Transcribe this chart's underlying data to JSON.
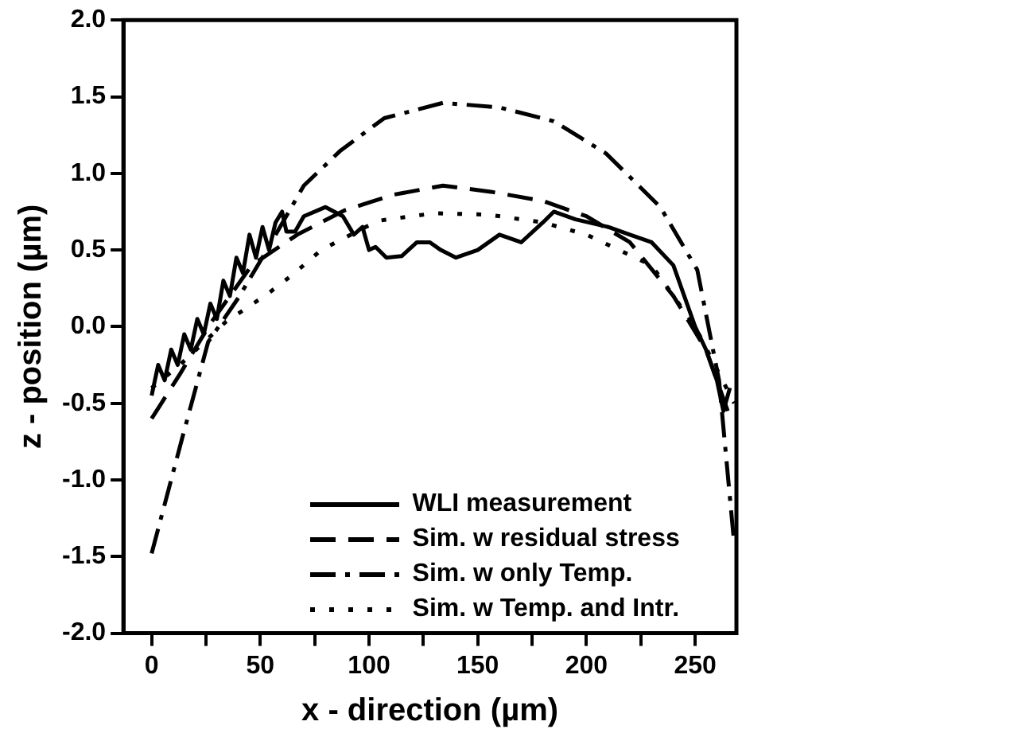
{
  "chart_data": {
    "type": "line",
    "xlabel": "x - direction (µm)",
    "ylabel": "z - position (µm)",
    "xlim": [
      -13,
      269
    ],
    "ylim": [
      -2,
      2
    ],
    "xticks": [
      0,
      {
        "value": 25,
        "label": null
      },
      50,
      {
        "value": 75,
        "label": null
      },
      100,
      {
        "value": 125,
        "label": null
      },
      150,
      {
        "value": 175,
        "label": null
      },
      200,
      {
        "value": 225,
        "label": null
      },
      250
    ],
    "yticks": [
      {
        "value": -2,
        "label": "-2.0"
      },
      {
        "value": -1.5,
        "label": "-1.5"
      },
      {
        "value": -1,
        "label": "-1.0"
      },
      {
        "value": -0.5,
        "label": "-0.5"
      },
      {
        "value": 0,
        "label": "0.0"
      },
      {
        "value": 0.5,
        "label": "0.5"
      },
      {
        "value": 1,
        "label": "1.0"
      },
      {
        "value": 1.5,
        "label": "1.5"
      },
      {
        "value": 2,
        "label": "2.0"
      }
    ],
    "grid": false,
    "legend": "bottom",
    "marker": "none",
    "series": [
      {
        "name": "WLI measurement",
        "color": "#000000",
        "line_style": "solid",
        "x": [
          0,
          3,
          6,
          9,
          12,
          15,
          18,
          21,
          24,
          27,
          30,
          33,
          36,
          39,
          42,
          45,
          48,
          51,
          54,
          57,
          60,
          62,
          66,
          70,
          80,
          88,
          93,
          97,
          100,
          103,
          108,
          115,
          122,
          128,
          133,
          140,
          150,
          160,
          170,
          180,
          185,
          195,
          210,
          220,
          230,
          240,
          245,
          250,
          255,
          260,
          263,
          266
        ],
        "values": [
          -0.45,
          -0.25,
          -0.35,
          -0.15,
          -0.25,
          -0.05,
          -0.15,
          0.05,
          -0.05,
          0.15,
          0.05,
          0.3,
          0.2,
          0.45,
          0.35,
          0.6,
          0.45,
          0.65,
          0.5,
          0.68,
          0.75,
          0.62,
          0.62,
          0.72,
          0.78,
          0.72,
          0.6,
          0.65,
          0.5,
          0.52,
          0.45,
          0.46,
          0.55,
          0.55,
          0.5,
          0.45,
          0.5,
          0.6,
          0.55,
          0.68,
          0.75,
          0.7,
          0.65,
          0.6,
          0.55,
          0.4,
          0.2,
          0.0,
          -0.15,
          -0.35,
          -0.55,
          -0.4
        ]
      },
      {
        "name": "Sim. w residual stress",
        "color": "#000000",
        "line_style": "dashed",
        "x": [
          0,
          13,
          27,
          46,
          67,
          89,
          111,
          134,
          156,
          180,
          200,
          220,
          240,
          255,
          265
        ],
        "values": [
          -0.6,
          -0.31,
          0.02,
          0.4,
          0.6,
          0.76,
          0.86,
          0.92,
          0.88,
          0.82,
          0.72,
          0.55,
          0.2,
          -0.15,
          -0.55
        ]
      },
      {
        "name": "Sim. w only Temp.",
        "color": "#000000",
        "line_style": "dashdot",
        "x": [
          0,
          14,
          26,
          40,
          53,
          70,
          87,
          107,
          134,
          160,
          185,
          209,
          234,
          251,
          261,
          268
        ],
        "values": [
          -1.48,
          -0.73,
          -0.1,
          0.19,
          0.5,
          0.92,
          1.15,
          1.36,
          1.46,
          1.43,
          1.34,
          1.13,
          0.78,
          0.37,
          -0.35,
          -1.42
        ]
      },
      {
        "name": "Sim. w Temp. and Intr.",
        "color": "#000000",
        "line_style": "dotted",
        "x": [
          0,
          13,
          34,
          53,
          65,
          78,
          104,
          130,
          155,
          180,
          200,
          230,
          250,
          268
        ],
        "values": [
          -0.4,
          -0.25,
          0.03,
          0.21,
          0.34,
          0.5,
          0.69,
          0.74,
          0.73,
          0.68,
          0.6,
          0.4,
          0.0,
          -0.5
        ]
      }
    ]
  }
}
